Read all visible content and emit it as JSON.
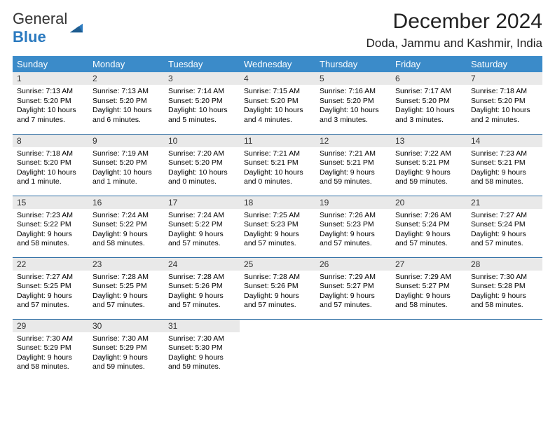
{
  "brand": {
    "name1": "General",
    "name2": "Blue"
  },
  "title": "December 2024",
  "location": "Doda, Jammu and Kashmir, India",
  "colors": {
    "header_bg": "#3b8bc9",
    "header_text": "#ffffff",
    "daynum_bg": "#e9e9e9",
    "row_border": "#2b6ca3",
    "logo_blue": "#2b7abf"
  },
  "weekdays": [
    "Sunday",
    "Monday",
    "Tuesday",
    "Wednesday",
    "Thursday",
    "Friday",
    "Saturday"
  ],
  "weeks": [
    [
      {
        "n": "1",
        "sr": "Sunrise: 7:13 AM",
        "ss": "Sunset: 5:20 PM",
        "dl": "Daylight: 10 hours and 7 minutes."
      },
      {
        "n": "2",
        "sr": "Sunrise: 7:13 AM",
        "ss": "Sunset: 5:20 PM",
        "dl": "Daylight: 10 hours and 6 minutes."
      },
      {
        "n": "3",
        "sr": "Sunrise: 7:14 AM",
        "ss": "Sunset: 5:20 PM",
        "dl": "Daylight: 10 hours and 5 minutes."
      },
      {
        "n": "4",
        "sr": "Sunrise: 7:15 AM",
        "ss": "Sunset: 5:20 PM",
        "dl": "Daylight: 10 hours and 4 minutes."
      },
      {
        "n": "5",
        "sr": "Sunrise: 7:16 AM",
        "ss": "Sunset: 5:20 PM",
        "dl": "Daylight: 10 hours and 3 minutes."
      },
      {
        "n": "6",
        "sr": "Sunrise: 7:17 AM",
        "ss": "Sunset: 5:20 PM",
        "dl": "Daylight: 10 hours and 3 minutes."
      },
      {
        "n": "7",
        "sr": "Sunrise: 7:18 AM",
        "ss": "Sunset: 5:20 PM",
        "dl": "Daylight: 10 hours and 2 minutes."
      }
    ],
    [
      {
        "n": "8",
        "sr": "Sunrise: 7:18 AM",
        "ss": "Sunset: 5:20 PM",
        "dl": "Daylight: 10 hours and 1 minute."
      },
      {
        "n": "9",
        "sr": "Sunrise: 7:19 AM",
        "ss": "Sunset: 5:20 PM",
        "dl": "Daylight: 10 hours and 1 minute."
      },
      {
        "n": "10",
        "sr": "Sunrise: 7:20 AM",
        "ss": "Sunset: 5:20 PM",
        "dl": "Daylight: 10 hours and 0 minutes."
      },
      {
        "n": "11",
        "sr": "Sunrise: 7:21 AM",
        "ss": "Sunset: 5:21 PM",
        "dl": "Daylight: 10 hours and 0 minutes."
      },
      {
        "n": "12",
        "sr": "Sunrise: 7:21 AM",
        "ss": "Sunset: 5:21 PM",
        "dl": "Daylight: 9 hours and 59 minutes."
      },
      {
        "n": "13",
        "sr": "Sunrise: 7:22 AM",
        "ss": "Sunset: 5:21 PM",
        "dl": "Daylight: 9 hours and 59 minutes."
      },
      {
        "n": "14",
        "sr": "Sunrise: 7:23 AM",
        "ss": "Sunset: 5:21 PM",
        "dl": "Daylight: 9 hours and 58 minutes."
      }
    ],
    [
      {
        "n": "15",
        "sr": "Sunrise: 7:23 AM",
        "ss": "Sunset: 5:22 PM",
        "dl": "Daylight: 9 hours and 58 minutes."
      },
      {
        "n": "16",
        "sr": "Sunrise: 7:24 AM",
        "ss": "Sunset: 5:22 PM",
        "dl": "Daylight: 9 hours and 58 minutes."
      },
      {
        "n": "17",
        "sr": "Sunrise: 7:24 AM",
        "ss": "Sunset: 5:22 PM",
        "dl": "Daylight: 9 hours and 57 minutes."
      },
      {
        "n": "18",
        "sr": "Sunrise: 7:25 AM",
        "ss": "Sunset: 5:23 PM",
        "dl": "Daylight: 9 hours and 57 minutes."
      },
      {
        "n": "19",
        "sr": "Sunrise: 7:26 AM",
        "ss": "Sunset: 5:23 PM",
        "dl": "Daylight: 9 hours and 57 minutes."
      },
      {
        "n": "20",
        "sr": "Sunrise: 7:26 AM",
        "ss": "Sunset: 5:24 PM",
        "dl": "Daylight: 9 hours and 57 minutes."
      },
      {
        "n": "21",
        "sr": "Sunrise: 7:27 AM",
        "ss": "Sunset: 5:24 PM",
        "dl": "Daylight: 9 hours and 57 minutes."
      }
    ],
    [
      {
        "n": "22",
        "sr": "Sunrise: 7:27 AM",
        "ss": "Sunset: 5:25 PM",
        "dl": "Daylight: 9 hours and 57 minutes."
      },
      {
        "n": "23",
        "sr": "Sunrise: 7:28 AM",
        "ss": "Sunset: 5:25 PM",
        "dl": "Daylight: 9 hours and 57 minutes."
      },
      {
        "n": "24",
        "sr": "Sunrise: 7:28 AM",
        "ss": "Sunset: 5:26 PM",
        "dl": "Daylight: 9 hours and 57 minutes."
      },
      {
        "n": "25",
        "sr": "Sunrise: 7:28 AM",
        "ss": "Sunset: 5:26 PM",
        "dl": "Daylight: 9 hours and 57 minutes."
      },
      {
        "n": "26",
        "sr": "Sunrise: 7:29 AM",
        "ss": "Sunset: 5:27 PM",
        "dl": "Daylight: 9 hours and 57 minutes."
      },
      {
        "n": "27",
        "sr": "Sunrise: 7:29 AM",
        "ss": "Sunset: 5:27 PM",
        "dl": "Daylight: 9 hours and 58 minutes."
      },
      {
        "n": "28",
        "sr": "Sunrise: 7:30 AM",
        "ss": "Sunset: 5:28 PM",
        "dl": "Daylight: 9 hours and 58 minutes."
      }
    ],
    [
      {
        "n": "29",
        "sr": "Sunrise: 7:30 AM",
        "ss": "Sunset: 5:29 PM",
        "dl": "Daylight: 9 hours and 58 minutes."
      },
      {
        "n": "30",
        "sr": "Sunrise: 7:30 AM",
        "ss": "Sunset: 5:29 PM",
        "dl": "Daylight: 9 hours and 59 minutes."
      },
      {
        "n": "31",
        "sr": "Sunrise: 7:30 AM",
        "ss": "Sunset: 5:30 PM",
        "dl": "Daylight: 9 hours and 59 minutes."
      },
      {
        "empty": true
      },
      {
        "empty": true
      },
      {
        "empty": true
      },
      {
        "empty": true
      }
    ]
  ]
}
